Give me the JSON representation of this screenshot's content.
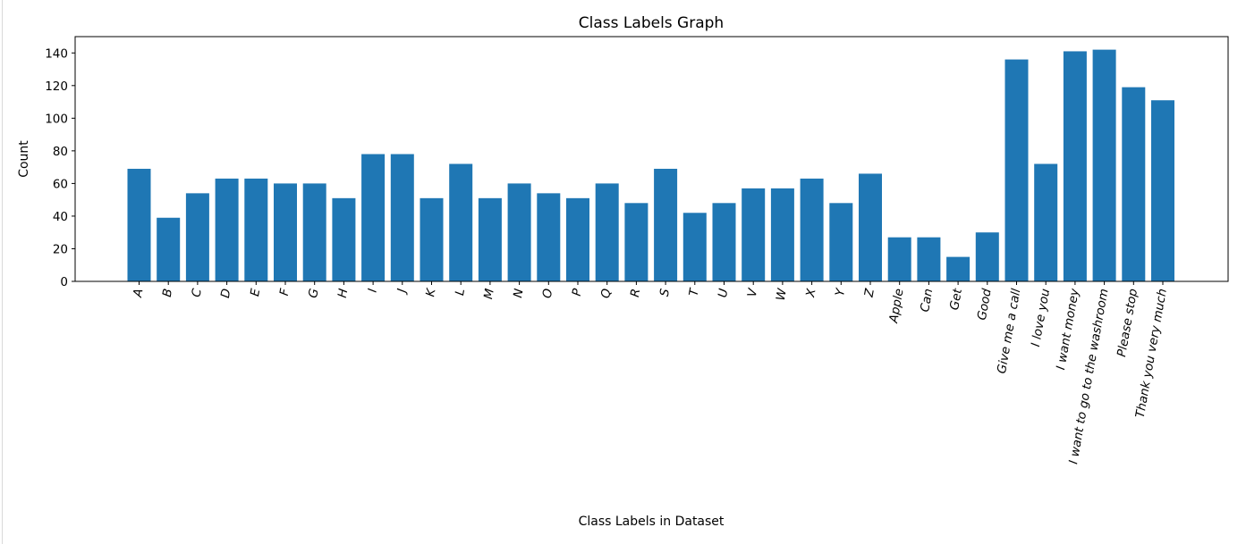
{
  "chart_data": {
    "type": "bar",
    "title": "Class Labels Graph",
    "xlabel": "Class Labels in Dataset",
    "ylabel": "Count",
    "ylim": [
      0,
      150
    ],
    "yticks": [
      0,
      20,
      40,
      60,
      80,
      100,
      120,
      140
    ],
    "grid": false,
    "legend": "none",
    "bar_color": "#1f77b4",
    "categories": [
      "A",
      "B",
      "C",
      "D",
      "E",
      "F",
      "G",
      "H",
      "I",
      "J",
      "K",
      "L",
      "M",
      "N",
      "O",
      "P",
      "Q",
      "R",
      "S",
      "T",
      "U",
      "V",
      "W",
      "X",
      "Y",
      "Z",
      "Apple",
      "Can",
      "Get",
      "Good",
      "Give me a call",
      "I love you",
      "I want money",
      "I want to go to the washroom",
      "Please stop",
      "Thank you very much"
    ],
    "values": [
      69,
      39,
      54,
      63,
      63,
      60,
      60,
      51,
      78,
      78,
      51,
      72,
      51,
      60,
      54,
      51,
      60,
      48,
      69,
      42,
      48,
      57,
      57,
      63,
      48,
      66,
      27,
      27,
      15,
      30,
      136,
      72,
      141,
      142,
      119,
      111
    ]
  }
}
